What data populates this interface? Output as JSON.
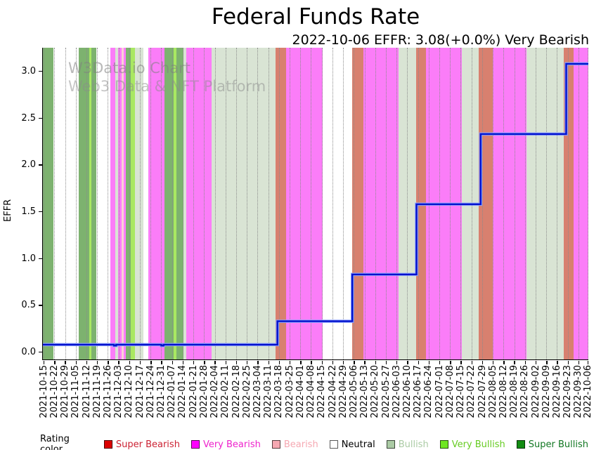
{
  "watermark": {
    "line1": "W3Data.io Chart",
    "line2": "Web3 Data & NFT Platform"
  },
  "legend": {
    "title": "Rating color",
    "items": [
      {
        "label": "Super Bearish",
        "rating": "super_bearish",
        "swatch": "#dc0000",
        "text_color": "#cc2233"
      },
      {
        "label": "Very Bearish",
        "rating": "very_bearish",
        "swatch": "#ff00ff",
        "text_color": "#ee22cc"
      },
      {
        "label": "Bearish",
        "rating": "bearish",
        "swatch": "#f6a8b2",
        "text_color": "#f6a8b2"
      },
      {
        "label": "Neutral",
        "rating": "neutral",
        "swatch": "#ffffff",
        "text_color": "#000000"
      },
      {
        "label": "Bullish",
        "rating": "bullish",
        "swatch": "#abcba5",
        "text_color": "#abcba5"
      },
      {
        "label": "Very Bullish",
        "rating": "very_bullish",
        "swatch": "#6fe622",
        "text_color": "#66cc22"
      },
      {
        "label": "Super Bullish",
        "rating": "super_bullish",
        "swatch": "#128c12",
        "text_color": "#117722"
      }
    ]
  },
  "chart_data": {
    "type": "line",
    "title": "Federal Funds Rate",
    "subtitle": "2022-10-06 EFFR: 3.08(+0.0%) Very Bearish",
    "ylabel": "EFFR",
    "series_name": "EFFR",
    "latest": {
      "date": "2022-10-06",
      "value": 3.08,
      "change": "+0.0%",
      "rating": "Very Bearish"
    },
    "yticks": [
      "0.0",
      "0.5",
      "1.0",
      "1.5",
      "2.0",
      "2.5",
      "3.0"
    ],
    "ylim": [
      -0.078,
      3.252
    ],
    "grid": "vertical-dotted",
    "legend_position": "bottom",
    "x_axis_total_days": 357,
    "x_first_tick_offset_days": 0.5,
    "x_tick_interval_days": 7,
    "x_tick_labels": [
      "2021-10-15",
      "2021-10-22",
      "2021-10-29",
      "2021-11-05",
      "2021-11-12",
      "2021-11-19",
      "2021-11-26",
      "2021-12-03",
      "2021-12-10",
      "2021-12-17",
      "2021-12-24",
      "2021-12-31",
      "2022-01-07",
      "2022-01-14",
      "2022-01-21",
      "2022-01-28",
      "2022-02-04",
      "2022-02-11",
      "2022-02-18",
      "2022-02-25",
      "2022-03-04",
      "2022-03-11",
      "2022-03-18",
      "2022-03-25",
      "2022-04-01",
      "2022-04-08",
      "2022-04-15",
      "2022-04-22",
      "2022-04-29",
      "2022-05-06",
      "2022-05-13",
      "2022-05-20",
      "2022-05-27",
      "2022-06-03",
      "2022-06-10",
      "2022-06-17",
      "2022-06-24",
      "2022-07-01",
      "2022-07-08",
      "2022-07-15",
      "2022-07-22",
      "2022-07-29",
      "2022-08-05",
      "2022-08-12",
      "2022-08-19",
      "2022-08-26",
      "2022-09-02",
      "2022-09-09",
      "2022-09-16",
      "2022-09-23",
      "2022-09-30",
      "2022-10-06"
    ],
    "line": {
      "color": "#0011cc",
      "halo_color": "#8fa3ff",
      "steps": [
        {
          "d": 0,
          "v": 0.08
        },
        {
          "d": 46.5,
          "v": 0.07
        },
        {
          "d": 48,
          "v": 0.08
        },
        {
          "d": 77.5,
          "v": 0.07
        },
        {
          "d": 79,
          "v": 0.08
        },
        {
          "d": 153.5,
          "v": 0.33
        },
        {
          "d": 202.5,
          "v": 0.83
        },
        {
          "d": 244.5,
          "v": 1.58
        },
        {
          "d": 286.5,
          "v": 2.33
        },
        {
          "d": 342.5,
          "v": 3.08
        },
        {
          "d": 357,
          "v": 3.08
        }
      ]
    },
    "rating_colors": {
      "super_bearish": "#d8806f",
      "very_bearish": "#fb7df8",
      "bearish": "#fbcfd9",
      "neutral": "#ffffff",
      "bullish": "#d9e4d4",
      "very_bullish": "#a9e862",
      "super_bullish": "#7db26f"
    },
    "bands": [
      {
        "from": 0,
        "to": 6.9,
        "rating": "super_bullish"
      },
      {
        "from": 6.9,
        "to": 23.5,
        "rating": "neutral"
      },
      {
        "from": 23.5,
        "to": 30.2,
        "rating": "super_bullish"
      },
      {
        "from": 30.2,
        "to": 31.6,
        "rating": "very_bullish"
      },
      {
        "from": 31.6,
        "to": 35,
        "rating": "super_bullish"
      },
      {
        "from": 35,
        "to": 44.2,
        "rating": "neutral"
      },
      {
        "from": 44.2,
        "to": 47.6,
        "rating": "very_bearish"
      },
      {
        "from": 47.6,
        "to": 49.2,
        "rating": "bullish"
      },
      {
        "from": 49.2,
        "to": 51.7,
        "rating": "very_bearish"
      },
      {
        "from": 51.7,
        "to": 53.1,
        "rating": "bearish"
      },
      {
        "from": 53.1,
        "to": 54.5,
        "rating": "very_bearish"
      },
      {
        "from": 54.5,
        "to": 57.5,
        "rating": "super_bullish"
      },
      {
        "from": 57.5,
        "to": 60.3,
        "rating": "very_bullish"
      },
      {
        "from": 60.3,
        "to": 65.8,
        "rating": "bullish"
      },
      {
        "from": 65.8,
        "to": 69,
        "rating": "neutral"
      },
      {
        "from": 69,
        "to": 79.6,
        "rating": "very_bearish"
      },
      {
        "from": 79.6,
        "to": 85.6,
        "rating": "super_bullish"
      },
      {
        "from": 85.6,
        "to": 87.4,
        "rating": "very_bullish"
      },
      {
        "from": 87.4,
        "to": 92,
        "rating": "super_bullish"
      },
      {
        "from": 92,
        "to": 93.8,
        "rating": "bullish"
      },
      {
        "from": 93.8,
        "to": 110.4,
        "rating": "very_bearish"
      },
      {
        "from": 110.4,
        "to": 152.3,
        "rating": "bullish"
      },
      {
        "from": 152.3,
        "to": 159.2,
        "rating": "super_bearish"
      },
      {
        "from": 159.2,
        "to": 183.1,
        "rating": "very_bearish"
      },
      {
        "from": 183.1,
        "to": 202.4,
        "rating": "neutral"
      },
      {
        "from": 202.4,
        "to": 209.8,
        "rating": "super_bearish"
      },
      {
        "from": 209.8,
        "to": 232.8,
        "rating": "very_bearish"
      },
      {
        "from": 232.8,
        "to": 244.3,
        "rating": "bullish"
      },
      {
        "from": 244.3,
        "to": 250.7,
        "rating": "super_bearish"
      },
      {
        "from": 250.7,
        "to": 274.2,
        "rating": "very_bearish"
      },
      {
        "from": 274.2,
        "to": 285.2,
        "rating": "bullish"
      },
      {
        "from": 285.2,
        "to": 294.4,
        "rating": "super_bearish"
      },
      {
        "from": 294.4,
        "to": 316.5,
        "rating": "very_bearish"
      },
      {
        "from": 316.5,
        "to": 340.9,
        "rating": "bullish"
      },
      {
        "from": 340.9,
        "to": 347.3,
        "rating": "super_bearish"
      },
      {
        "from": 347.3,
        "to": 357,
        "rating": "very_bearish"
      }
    ]
  }
}
